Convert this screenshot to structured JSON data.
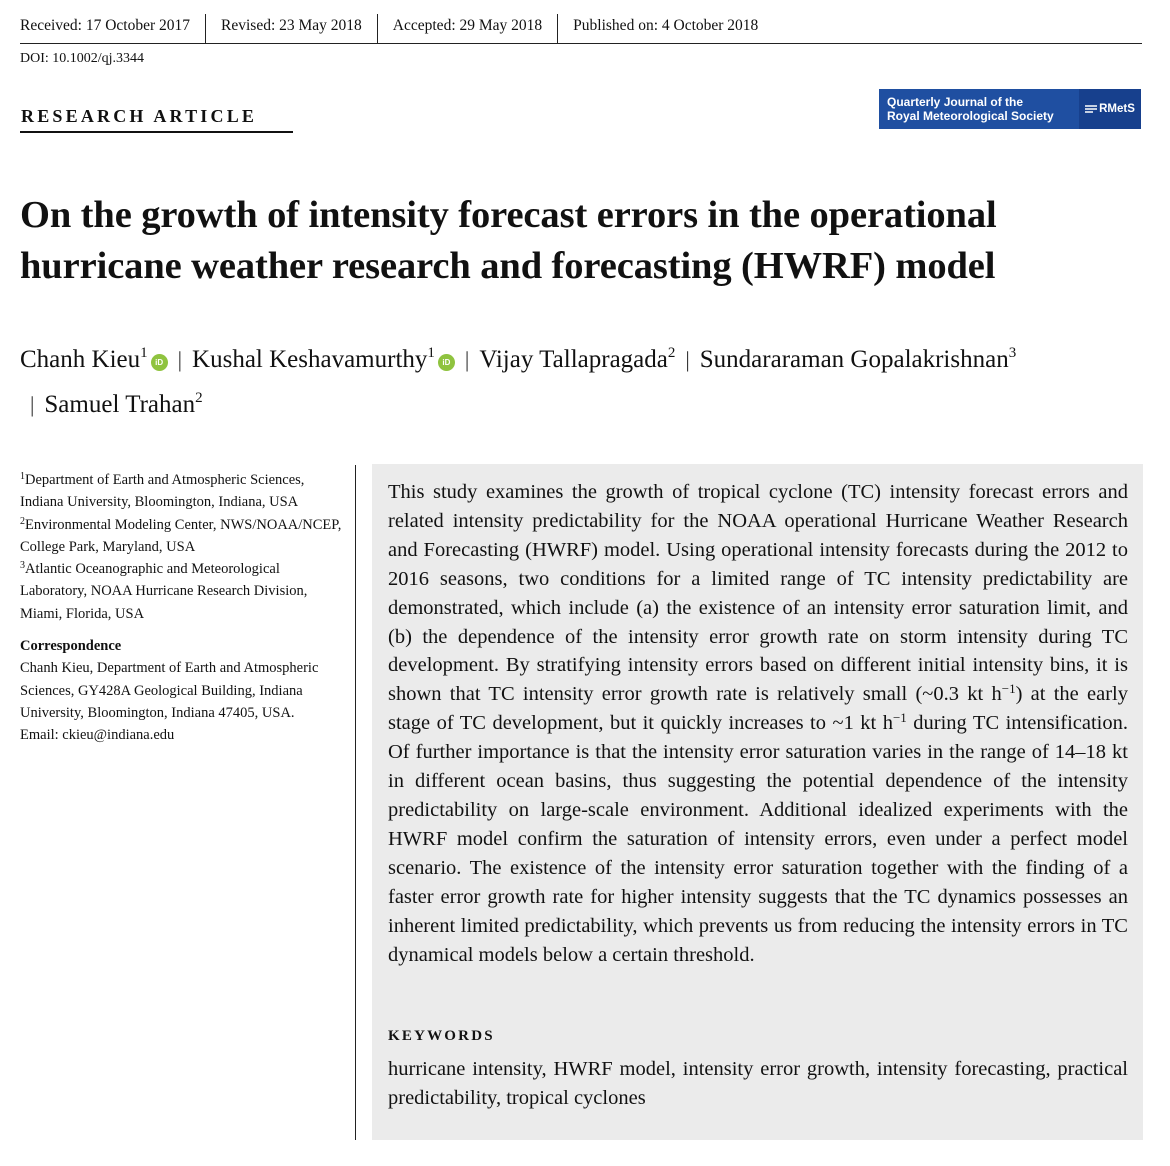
{
  "header": {
    "dates": [
      "Received: 17 October 2017",
      "Revised: 23 May 2018",
      "Accepted: 29 May 2018",
      "Published on: 4 October 2018"
    ],
    "doi": "DOI: 10.1002/qj.3344",
    "article_type": "RESEARCH ARTICLE",
    "journal_line1": "Quarterly Journal of the",
    "journal_line2": "Royal Meteorological Society",
    "journal_logo": "RMetS"
  },
  "paper": {
    "title": "On the growth of intensity forecast errors in the operational hurricane weather research and forecasting (HWRF) model",
    "authors": [
      {
        "name": "Chanh Kieu",
        "aff": "1",
        "orcid": true
      },
      {
        "name": "Kushal Keshavamurthy",
        "aff": "1",
        "orcid": true
      },
      {
        "name": "Vijay Tallapragada",
        "aff": "2",
        "orcid": false
      },
      {
        "name": "Sundararaman Gopalakrishnan",
        "aff": "3",
        "orcid": false
      },
      {
        "name": "Samuel Trahan",
        "aff": "2",
        "orcid": false
      }
    ],
    "orcid_label": "iD",
    "separator": "|",
    "affiliations": [
      {
        "num": "1",
        "text": "Department of Earth and Atmospheric Sciences, Indiana University, Bloomington, Indiana, USA"
      },
      {
        "num": "2",
        "text": "Environmental Modeling Center, NWS/NOAA/NCEP, College Park, Maryland, USA"
      },
      {
        "num": "3",
        "text": "Atlantic Oceanographic and Meteorological Laboratory, NOAA Hurricane Research Division, Miami, Florida, USA"
      }
    ],
    "correspondence_heading": "Correspondence",
    "correspondence_text": "Chanh Kieu, Department of Earth and Atmospheric Sciences, GY428A Geological Building, Indiana University, Bloomington, Indiana 47405, USA.",
    "correspondence_email": "Email: ckieu@indiana.edu",
    "abstract": {
      "p1": "This study examines the growth of tropical cyclone (TC) intensity forecast errors and related intensity predictability for the NOAA operational Hurricane Weather Research and Forecasting (HWRF) model. Using operational intensity forecasts dur­ing the 2012 to 2016 seasons, two conditions for a limited range of TC intensity predictability are demonstrated, which include (a) the existence of an intensity error saturation limit, and (b) the dependence of the intensity error growth rate on storm intensity during TC development. By stratifying intensity errors based on different initial intensity bins, it is shown that TC intensity error growth rate is relatively small (~0.3 kt h",
      "sup1": "−1",
      "p2": ") at the early stage of TC development, but it quickly increases to ~1 kt h",
      "sup2": "−1",
      "p3": " during TC intensification. Of further importance is that the intensity error saturation varies in the range of 14–18 kt in different ocean basins, thus suggesting the potential dependence of the intensity predictability on large-scale environment. Additional idealized experiments with the HWRF model confirm the saturation of intensity errors, even under a perfect model scenario. The existence of the inten­sity error saturation together with the finding of a faster error growth rate for higher intensity suggests that the TC dynamics possesses an inherent limited predictability, which prevents us from reducing the intensity errors in TC dynamical models below a certain threshold."
    },
    "keywords_heading": "KEYWORDS",
    "keywords": "hurricane intensity, HWRF model, intensity error growth, intensity forecasting, practical predictability, tropical cyclones"
  }
}
